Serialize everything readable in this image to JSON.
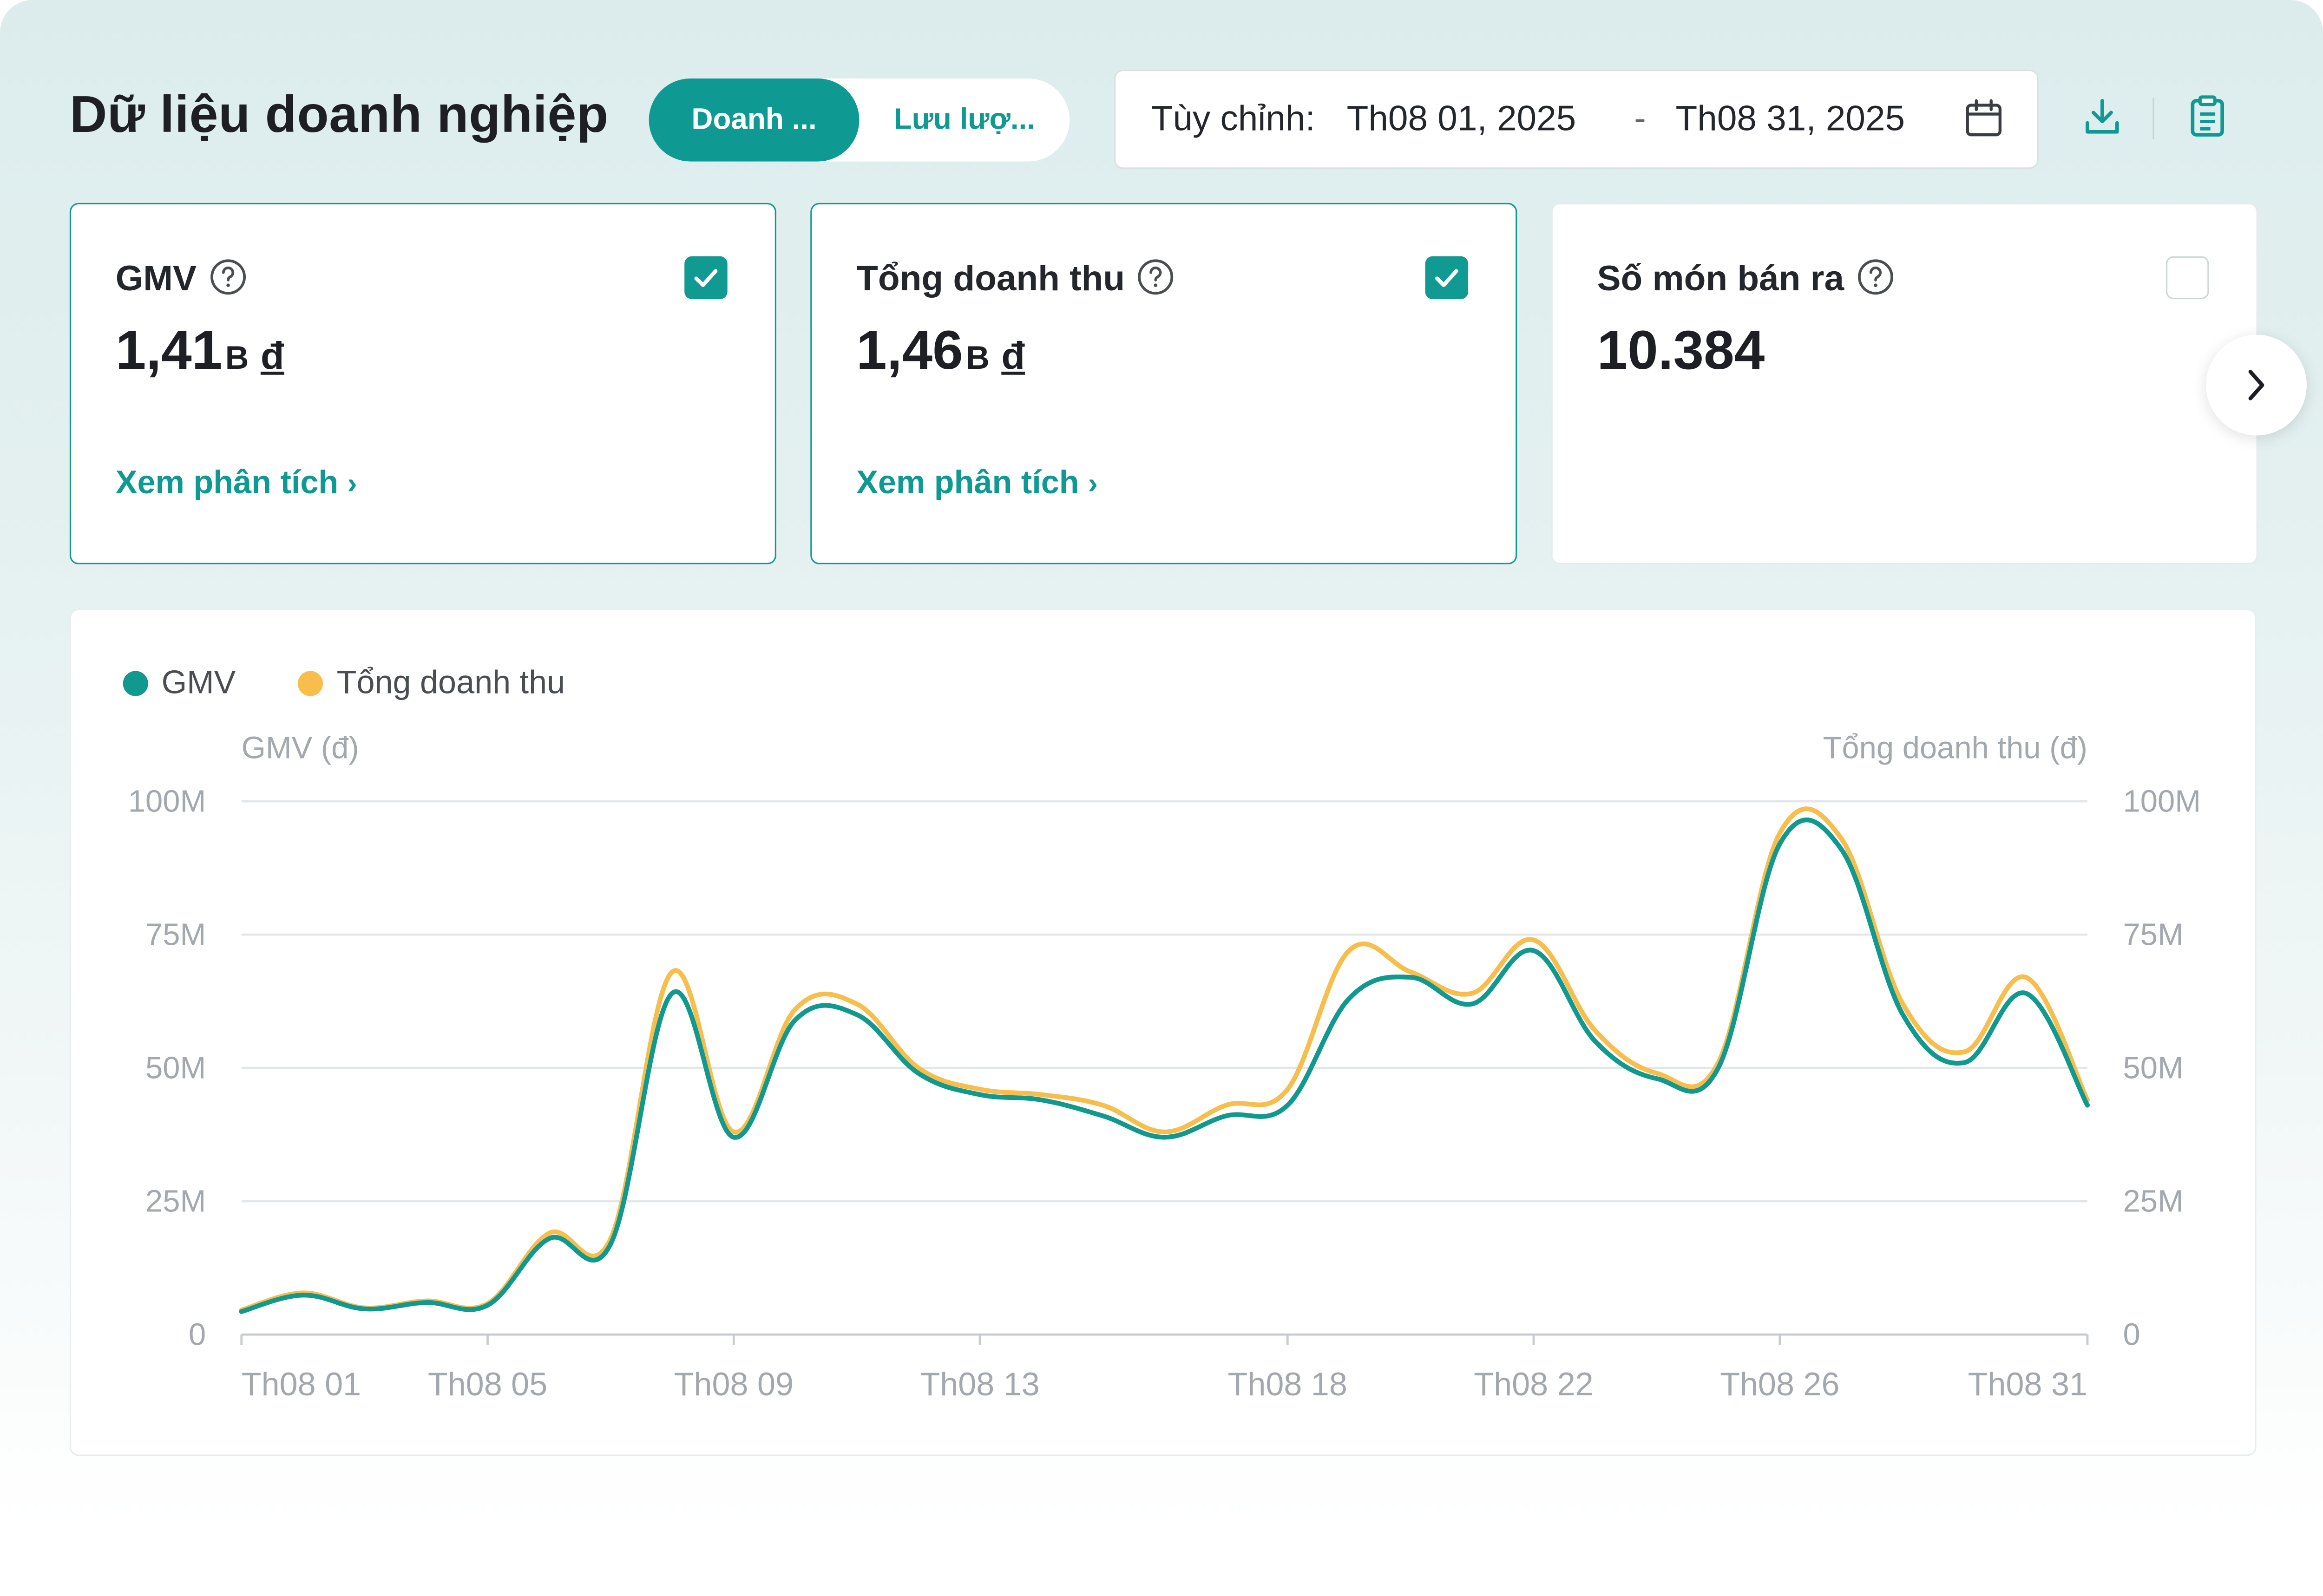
{
  "header": {
    "title": "Dữ liệu doanh nghiệp",
    "tabs": [
      {
        "label": "Doanh ...",
        "active": true
      },
      {
        "label": "Lưu lượ...",
        "active": false
      }
    ],
    "date_range": {
      "prefix": "Tùy chỉnh:",
      "start": "Th08 01, 2025",
      "separator": "-",
      "end": "Th08 31, 2025",
      "icon": "calendar-icon"
    },
    "actions": [
      {
        "icon": "download-icon"
      },
      {
        "icon": "report-icon"
      }
    ]
  },
  "metrics": [
    {
      "title": "GMV",
      "value": "1,41",
      "unit": "B",
      "currency": "đ",
      "checked": true,
      "link": "Xem phân tích"
    },
    {
      "title": "Tổng doanh thu",
      "value": "1,46",
      "unit": "B",
      "currency": "đ",
      "checked": true,
      "link": "Xem phân tích"
    },
    {
      "title": "Số món bán ra",
      "value": "10.384",
      "unit": "",
      "currency": "",
      "checked": false,
      "link": ""
    }
  ],
  "colors": {
    "accent": "#0E9A93",
    "gmv": "#11998F",
    "revenue": "#F8BE4D",
    "grid": "#E4E7EA",
    "axis_text": "#A3A8AE"
  },
  "chart_data": {
    "type": "line",
    "legend": [
      "GMV",
      "Tổng doanh thu"
    ],
    "legend_position": "top-left",
    "ylabel_left": "GMV (đ)",
    "ylabel_right": "Tổng doanh thu (đ)",
    "ylim": [
      0,
      100
    ],
    "yticks": [
      "0",
      "25M",
      "50M",
      "75M",
      "100M"
    ],
    "y_tick_values": [
      0,
      25,
      50,
      75,
      100
    ],
    "y_unit": "M",
    "grid": true,
    "x": [
      "Th08 01",
      "Th08 02",
      "Th08 03",
      "Th08 04",
      "Th08 05",
      "Th08 06",
      "Th08 07",
      "Th08 08",
      "Th08 09",
      "Th08 10",
      "Th08 11",
      "Th08 12",
      "Th08 13",
      "Th08 14",
      "Th08 15",
      "Th08 16",
      "Th08 17",
      "Th08 18",
      "Th08 19",
      "Th08 20",
      "Th08 21",
      "Th08 22",
      "Th08 23",
      "Th08 24",
      "Th08 25",
      "Th08 26",
      "Th08 27",
      "Th08 28",
      "Th08 29",
      "Th08 30",
      "Th08 31"
    ],
    "xtick_labels": [
      "Th08 01",
      "Th08 05",
      "Th08 09",
      "Th08 13",
      "Th08 18",
      "Th08 22",
      "Th08 26",
      "Th08 31"
    ],
    "series": [
      {
        "name": "GMV",
        "values": [
          4.3,
          7.4,
          4.8,
          6.0,
          5.5,
          18,
          17,
          64,
          37,
          59,
          60,
          49,
          45,
          44,
          41,
          37,
          41,
          43,
          63,
          67,
          62,
          72,
          55,
          48,
          50,
          92,
          91,
          60,
          51,
          64,
          43
        ]
      },
      {
        "name": "Tổng doanh thu",
        "values": [
          4.6,
          7.8,
          5.0,
          6.3,
          5.8,
          19,
          18,
          68,
          38,
          61,
          62,
          50,
          46,
          45,
          43,
          38,
          43,
          46,
          72,
          68,
          64,
          74,
          57,
          49,
          51,
          94,
          93,
          62,
          53,
          67,
          44
        ]
      }
    ]
  }
}
